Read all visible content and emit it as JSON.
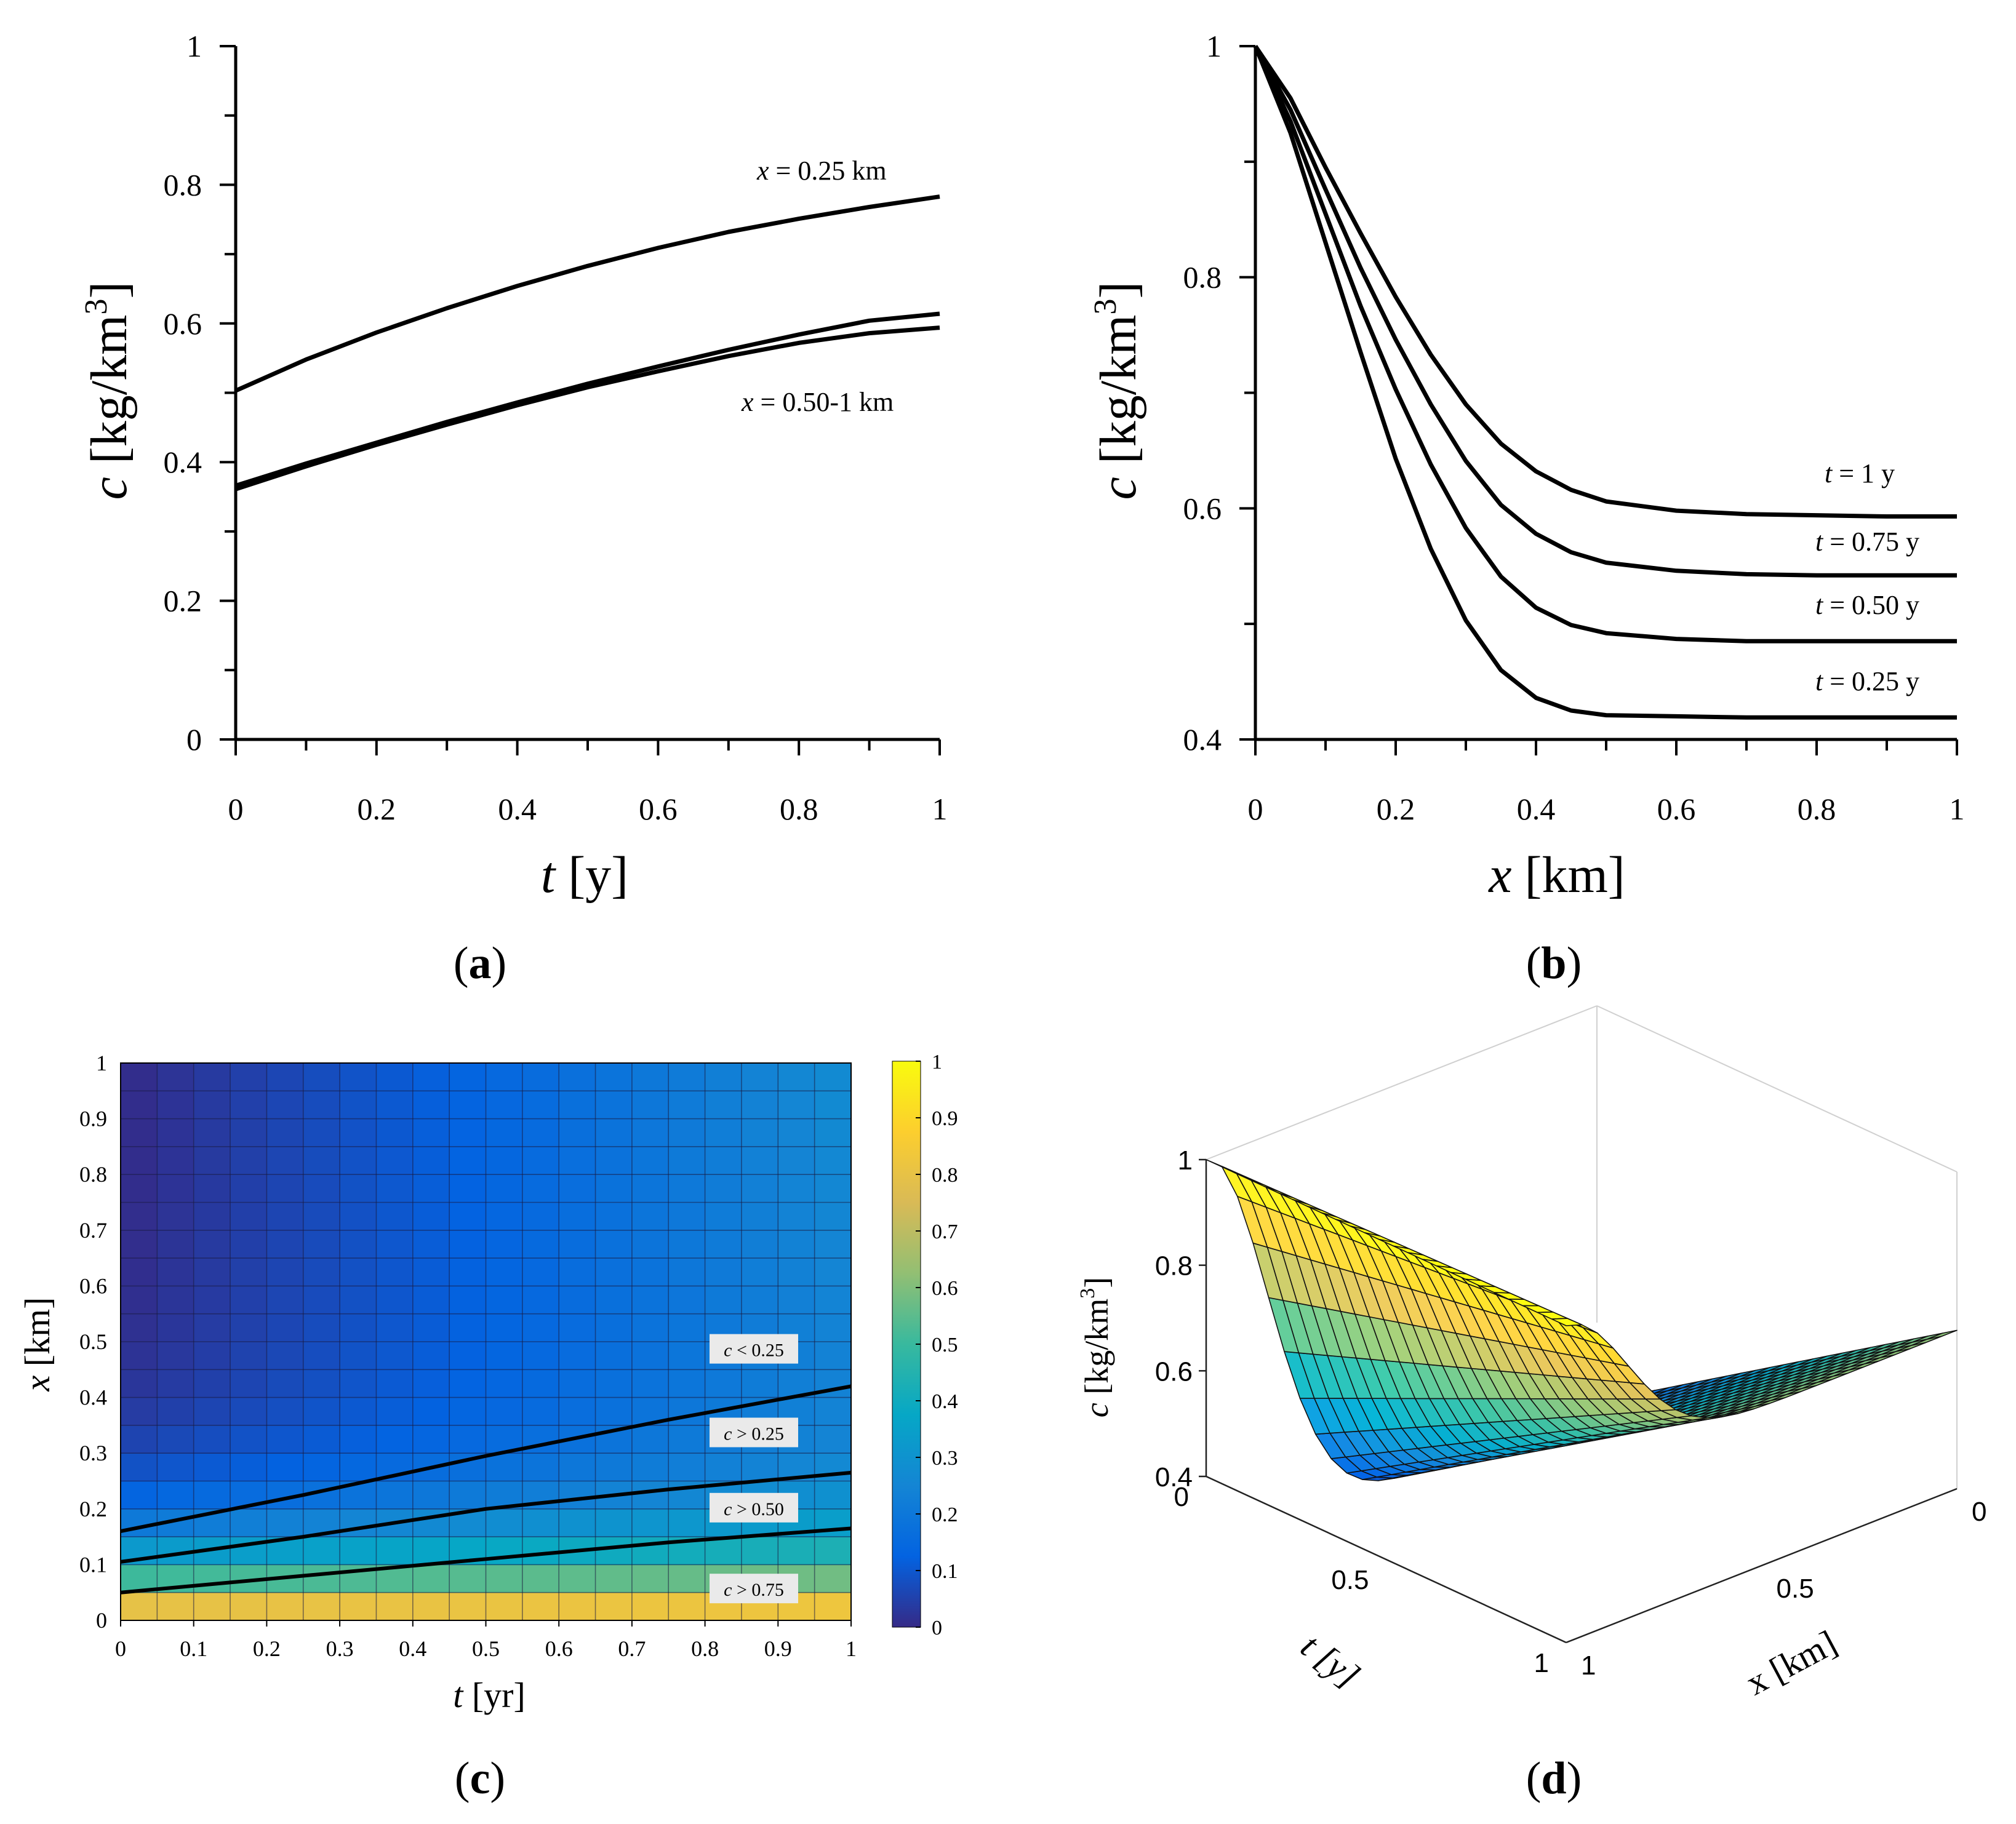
{
  "chart_data": [
    {
      "type": "line",
      "panel": "(a)",
      "panel_letter": "a",
      "xlabel_var": "t",
      "xlabel_unit": " [y]",
      "ylabel_var": "c",
      "ylabel_unit": " [kg/km",
      "ylabel_sup": "3",
      "ylabel_close": "]",
      "xlim": [
        0,
        1
      ],
      "ylim": [
        0,
        1
      ],
      "xticks": [
        0,
        0.2,
        0.4,
        0.6,
        0.8,
        1
      ],
      "xtick_labels": [
        "0",
        "0.2",
        "0.4",
        "0.6",
        "0.8",
        "1"
      ],
      "yticks": [
        0,
        0.2,
        0.4,
        0.6,
        0.8,
        1
      ],
      "ytick_labels": [
        "0",
        "0.2",
        "0.4",
        "0.6",
        "0.8",
        "1"
      ],
      "x": [
        0,
        0.1,
        0.2,
        0.3,
        0.4,
        0.5,
        0.6,
        0.7,
        0.8,
        0.9,
        1.0
      ],
      "series": [
        {
          "name": "x = 0.25 km",
          "values": [
            0.503,
            0.548,
            0.587,
            0.622,
            0.654,
            0.683,
            0.709,
            0.732,
            0.751,
            0.768,
            0.783
          ]
        },
        {
          "name": "x = 0.50 km",
          "values": [
            0.366,
            0.398,
            0.428,
            0.458,
            0.486,
            0.513,
            0.538,
            0.562,
            0.584,
            0.604,
            0.614
          ]
        },
        {
          "name": "x = 1 km",
          "values": [
            0.361,
            0.394,
            0.425,
            0.454,
            0.482,
            0.508,
            0.531,
            0.553,
            0.572,
            0.586,
            0.594
          ]
        }
      ],
      "annotations": [
        {
          "var": "x",
          "text": " = 0.25 km"
        },
        {
          "var": "x",
          "text": " = 0.50-1 km"
        }
      ]
    },
    {
      "type": "line",
      "panel": "(b)",
      "panel_letter": "b",
      "xlabel_var": "x",
      "xlabel_unit": " [km]",
      "ylabel_var": "c",
      "ylabel_unit": " [kg/km",
      "ylabel_sup": "3",
      "ylabel_close": "]",
      "xlim": [
        0,
        1
      ],
      "ylim": [
        0.4,
        1
      ],
      "xticks": [
        0,
        0.2,
        0.4,
        0.6,
        0.8,
        1
      ],
      "xtick_labels": [
        "0",
        "0.2",
        "0.4",
        "0.6",
        "0.8",
        "1"
      ],
      "yticks": [
        0.4,
        0.6,
        0.8,
        1
      ],
      "ytick_labels": [
        "0.4",
        "0.6",
        "0.8",
        "1"
      ],
      "x": [
        0,
        0.05,
        0.1,
        0.15,
        0.2,
        0.25,
        0.3,
        0.35,
        0.4,
        0.45,
        0.5,
        0.6,
        0.7,
        0.8,
        0.9,
        1.0
      ],
      "series": [
        {
          "name": "t = 1 y",
          "values": [
            1.0,
            0.955,
            0.895,
            0.838,
            0.783,
            0.733,
            0.69,
            0.656,
            0.632,
            0.616,
            0.606,
            0.598,
            0.595,
            0.594,
            0.593,
            0.593
          ]
        },
        {
          "name": "t = 0.75 y",
          "values": [
            1.0,
            0.945,
            0.876,
            0.808,
            0.746,
            0.69,
            0.641,
            0.603,
            0.578,
            0.562,
            0.553,
            0.546,
            0.543,
            0.542,
            0.542,
            0.542
          ]
        },
        {
          "name": "t = 0.50 y",
          "values": [
            1.0,
            0.935,
            0.855,
            0.775,
            0.703,
            0.638,
            0.583,
            0.541,
            0.514,
            0.499,
            0.492,
            0.487,
            0.485,
            0.485,
            0.485,
            0.485
          ]
        },
        {
          "name": "t = 0.25 y",
          "values": [
            1.0,
            0.925,
            0.83,
            0.735,
            0.643,
            0.565,
            0.503,
            0.46,
            0.436,
            0.425,
            0.421,
            0.42,
            0.419,
            0.419,
            0.419,
            0.419
          ]
        }
      ],
      "annotations": [
        {
          "var": "t",
          "text": " = 1 y"
        },
        {
          "var": "t",
          "text": " = 0.75 y"
        },
        {
          "var": "t",
          "text": " = 0.50 y"
        },
        {
          "var": "t",
          "text": " = 0.25 y"
        }
      ]
    },
    {
      "type": "heatmap",
      "panel": "(c)",
      "panel_letter": "c",
      "xlabel_var": "t",
      "xlabel_unit": " [yr]",
      "ylabel_var": "x",
      "ylabel_unit": " [km]",
      "xlim": [
        0,
        1
      ],
      "ylim": [
        0,
        1
      ],
      "xticks": [
        0,
        0.1,
        0.2,
        0.3,
        0.4,
        0.5,
        0.6,
        0.7,
        0.8,
        0.9,
        1
      ],
      "xtick_labels": [
        "0",
        "0.1",
        "0.2",
        "0.3",
        "0.4",
        "0.5",
        "0.6",
        "0.7",
        "0.8",
        "0.9",
        "1"
      ],
      "yticks": [
        0,
        0.1,
        0.2,
        0.3,
        0.4,
        0.5,
        0.6,
        0.7,
        0.8,
        0.9,
        1
      ],
      "ytick_labels": [
        "0",
        "0.1",
        "0.2",
        "0.3",
        "0.4",
        "0.5",
        "0.6",
        "0.7",
        "0.8",
        "0.9",
        "1"
      ],
      "grid_cols": 20,
      "grid_rows": 20,
      "colorbar_ticks": [
        0,
        0.1,
        0.2,
        0.3,
        0.4,
        0.5,
        0.6,
        0.7,
        0.8,
        0.9,
        1
      ],
      "colorbar_labels": [
        "0",
        "0.1",
        "0.2",
        "0.3",
        "0.4",
        "0.5",
        "0.6",
        "0.7",
        "0.8",
        "0.9",
        "1"
      ],
      "contours": [
        {
          "name": "c = 0.25",
          "x": [
            0,
            0.25,
            0.5,
            0.75,
            1
          ],
          "y": [
            0.16,
            0.225,
            0.295,
            0.36,
            0.42
          ]
        },
        {
          "name": "c = 0.50",
          "x": [
            0,
            0.25,
            0.5,
            0.75,
            1
          ],
          "y": [
            0.105,
            0.15,
            0.2,
            0.235,
            0.265
          ]
        },
        {
          "name": "c = 0.75",
          "x": [
            0,
            0.25,
            0.5,
            0.75,
            1
          ],
          "y": [
            0.05,
            0.08,
            0.11,
            0.14,
            0.165
          ]
        }
      ],
      "labels": [
        {
          "var": "c",
          "text": " < 0.25",
          "y": 0.485
        },
        {
          "var": "c",
          "text": " > 0.25",
          "y": 0.335
        },
        {
          "var": "c",
          "text": " > 0.50",
          "y": 0.2
        },
        {
          "var": "c",
          "text": " > 0.75",
          "y": 0.055
        }
      ]
    },
    {
      "type": "surface",
      "panel": "(d)",
      "panel_letter": "d",
      "zlabel_var": "c",
      "zlabel_unit": " [kg/km",
      "zlabel_sup": "3",
      "zlabel_close": "]",
      "tlabel": "t [y]",
      "xlabel": "x [km]",
      "zticks": [
        0.4,
        0.6,
        0.8,
        1
      ],
      "ztick_labels": [
        "0.4",
        "0.6",
        "0.8",
        "1"
      ],
      "tticks": [
        0,
        0.5,
        1
      ],
      "ttick_labels": [
        "0",
        "0.5",
        "1"
      ],
      "xticks": [
        0,
        0.5,
        1
      ],
      "xtick_labels": [
        "0",
        "0.5",
        "1"
      ],
      "grid_t": 25,
      "grid_x": 25
    }
  ],
  "colors": {
    "parula": [
      "#352a87",
      "#0363e1",
      "#1485d4",
      "#06a7c6",
      "#38b99e",
      "#92bf73",
      "#d9ba56",
      "#fcce2e",
      "#f9fb0e"
    ],
    "line": "#000000"
  }
}
